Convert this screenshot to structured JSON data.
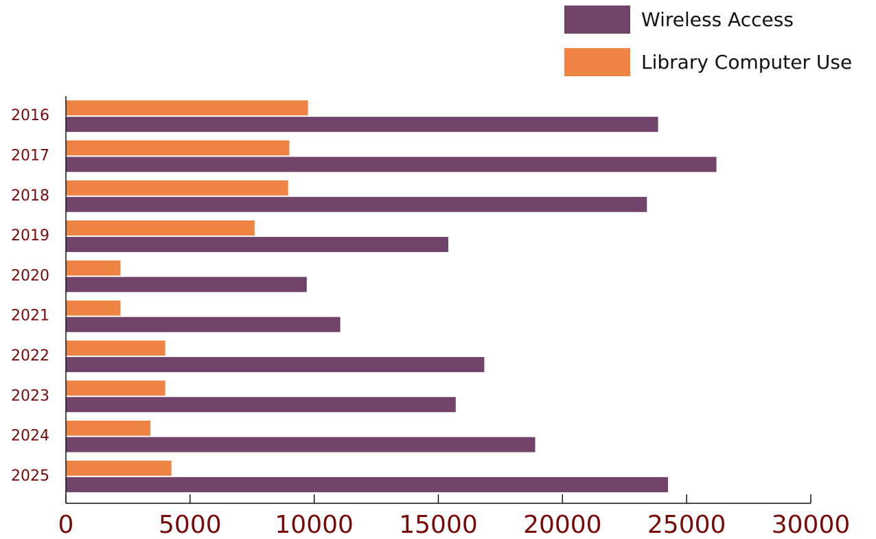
{
  "chart_data": {
    "type": "hbar",
    "categories": [
      "2016",
      "2017",
      "2018",
      "2019",
      "2020",
      "2021",
      "2022",
      "2023",
      "2024",
      "2025"
    ],
    "series": [
      {
        "name": "Library Computer Use",
        "color": "#ee8444",
        "values": [
          9750,
          9000,
          8950,
          7600,
          2200,
          2200,
          4000,
          4000,
          3400,
          4250
        ]
      },
      {
        "name": "Wireless Access",
        "color": "#714369",
        "values": [
          23850,
          26200,
          23400,
          15400,
          9700,
          11050,
          16850,
          15700,
          18900,
          24250
        ]
      }
    ],
    "xlim": [
      0,
      30000
    ],
    "xticks": [
      0,
      5000,
      10000,
      15000,
      20000,
      25000,
      30000
    ],
    "legend": "top-right"
  }
}
